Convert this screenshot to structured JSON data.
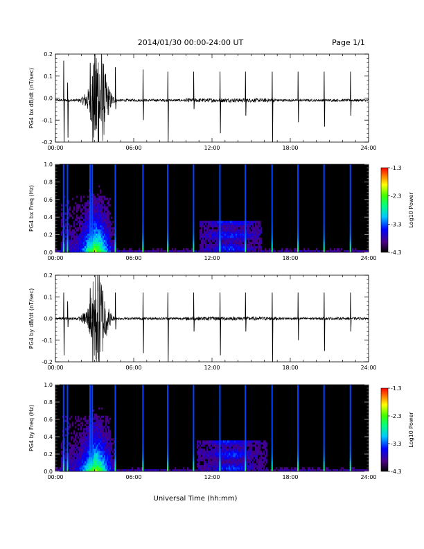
{
  "header": {
    "title": "2014/01/30  00:00-24:00 UT",
    "page": "Page 1/1"
  },
  "xlabel": "Universal Time (hh:mm)",
  "chart_data": [
    {
      "type": "line",
      "ylabel": "PG4 bx dB/dt (nT/sec)",
      "xlim": [
        0,
        24
      ],
      "ylim": [
        -0.2,
        0.2
      ],
      "xticks": [
        "00:00",
        "06:00",
        "12:00",
        "18:00",
        "24:00"
      ],
      "yticks": [
        "-0.2",
        "-0.1",
        "0.0",
        "0.1",
        "0.2"
      ],
      "baseline": -0.01,
      "noise_level": 0.006,
      "disturbance": [
        {
          "x": 2.4,
          "amp": 0.03
        },
        {
          "x": 2.9,
          "amp": 0.06
        },
        {
          "x": 3.2,
          "amp": 0.22
        },
        {
          "x": 3.5,
          "amp": 0.12
        },
        {
          "x": 3.8,
          "amp": 0.05
        },
        {
          "x": 4.1,
          "amp": 0.03
        }
      ],
      "spikes": [
        {
          "x": 0.62,
          "max": 0.17,
          "min": -0.2
        },
        {
          "x": 0.92,
          "max": 0.07,
          "min": -0.18
        },
        {
          "x": 2.65,
          "max": 0.16,
          "min": -0.05
        },
        {
          "x": 2.82,
          "max": 0.1,
          "min": -0.2
        },
        {
          "x": 4.58,
          "max": 0.14,
          "min": -0.05
        },
        {
          "x": 6.7,
          "max": 0.13,
          "min": -0.1
        },
        {
          "x": 8.6,
          "max": 0.12,
          "min": -0.2
        },
        {
          "x": 10.58,
          "max": 0.12,
          "min": -0.05
        },
        {
          "x": 12.6,
          "max": 0.12,
          "min": -0.16
        },
        {
          "x": 14.55,
          "max": 0.12,
          "min": -0.08
        },
        {
          "x": 16.6,
          "max": 0.12,
          "min": -0.2
        },
        {
          "x": 18.58,
          "max": 0.12,
          "min": -0.11
        },
        {
          "x": 20.58,
          "max": 0.12,
          "min": -0.13
        },
        {
          "x": 22.6,
          "max": 0.12,
          "min": -0.08
        }
      ]
    },
    {
      "type": "heatmap",
      "ylabel": "PG4 bx Freq (Hz)",
      "xlim": [
        0,
        24
      ],
      "ylim": [
        0,
        1
      ],
      "xticks": [
        "00:00",
        "06:00",
        "12:00",
        "18:00",
        "24:00"
      ],
      "yticks": [
        "0.0",
        "0.2",
        "0.4",
        "0.6",
        "0.8",
        "1.0"
      ],
      "colorbar": {
        "label": "Log10 Power",
        "range": [
          -4.3,
          -1.3
        ],
        "ticks": [
          "-1.3",
          "-2.3",
          "-3.3",
          "-4.3"
        ]
      },
      "stripes": [
        0.62,
        0.92,
        2.65,
        2.82,
        4.58,
        6.7,
        8.6,
        10.58,
        12.6,
        14.55,
        16.6,
        18.58,
        20.58,
        22.6
      ],
      "storm": {
        "start": 0.4,
        "end": 4.6,
        "center": 3.1,
        "fmax": 0.65
      },
      "patch": {
        "start": 11.0,
        "end": 15.8,
        "center": 13.4,
        "fmax": 0.36
      }
    },
    {
      "type": "line",
      "ylabel": "PG4 by dB/dt (nT/sec)",
      "xlim": [
        0,
        24
      ],
      "ylim": [
        -0.2,
        0.2
      ],
      "xticks": [
        "00:00",
        "06:00",
        "12:00",
        "18:00",
        "24:00"
      ],
      "yticks": [
        "-0.2",
        "-0.1",
        "0.0",
        "0.1",
        "0.2"
      ],
      "baseline": 0.0,
      "noise_level": 0.006,
      "disturbance": [
        {
          "x": 2.3,
          "amp": 0.02
        },
        {
          "x": 2.7,
          "amp": 0.04
        },
        {
          "x": 3.1,
          "amp": 0.18
        },
        {
          "x": 3.4,
          "amp": 0.14
        },
        {
          "x": 3.7,
          "amp": 0.05
        },
        {
          "x": 4.0,
          "amp": 0.03
        }
      ],
      "spikes": [
        {
          "x": 0.62,
          "max": 0.12,
          "min": -0.17
        },
        {
          "x": 0.92,
          "max": 0.08,
          "min": -0.04
        },
        {
          "x": 2.65,
          "max": 0.14,
          "min": -0.04
        },
        {
          "x": 2.82,
          "max": 0.07,
          "min": -0.2
        },
        {
          "x": 4.58,
          "max": 0.12,
          "min": -0.05
        },
        {
          "x": 6.7,
          "max": 0.12,
          "min": -0.16
        },
        {
          "x": 8.6,
          "max": 0.12,
          "min": -0.2
        },
        {
          "x": 10.58,
          "max": 0.12,
          "min": -0.06
        },
        {
          "x": 12.6,
          "max": 0.12,
          "min": -0.17
        },
        {
          "x": 14.55,
          "max": 0.12,
          "min": -0.06
        },
        {
          "x": 16.6,
          "max": 0.12,
          "min": -0.2
        },
        {
          "x": 18.58,
          "max": 0.12,
          "min": -0.1
        },
        {
          "x": 20.58,
          "max": 0.12,
          "min": -0.15
        },
        {
          "x": 22.6,
          "max": 0.12,
          "min": -0.06
        }
      ]
    },
    {
      "type": "heatmap",
      "ylabel": "PG4 by Freq (Hz)",
      "xlim": [
        0,
        24
      ],
      "ylim": [
        0,
        1
      ],
      "xticks": [
        "00:00",
        "06:00",
        "12:00",
        "18:00",
        "24:00"
      ],
      "yticks": [
        "0.0",
        "0.2",
        "0.4",
        "0.6",
        "0.8",
        "1.0"
      ],
      "colorbar": {
        "label": "Log10 Power",
        "range": [
          -4.3,
          -1.3
        ],
        "ticks": [
          "-1.3",
          "-2.3",
          "-3.3",
          "-4.3"
        ]
      },
      "stripes": [
        0.62,
        0.92,
        2.65,
        2.82,
        4.58,
        6.7,
        8.6,
        10.58,
        12.6,
        14.55,
        16.6,
        18.58,
        20.58,
        22.6
      ],
      "storm": {
        "start": 0.4,
        "end": 4.6,
        "center": 3.1,
        "fmax": 0.65
      },
      "patch": {
        "start": 10.8,
        "end": 16.2,
        "center": 13.4,
        "fmax": 0.35
      }
    }
  ]
}
